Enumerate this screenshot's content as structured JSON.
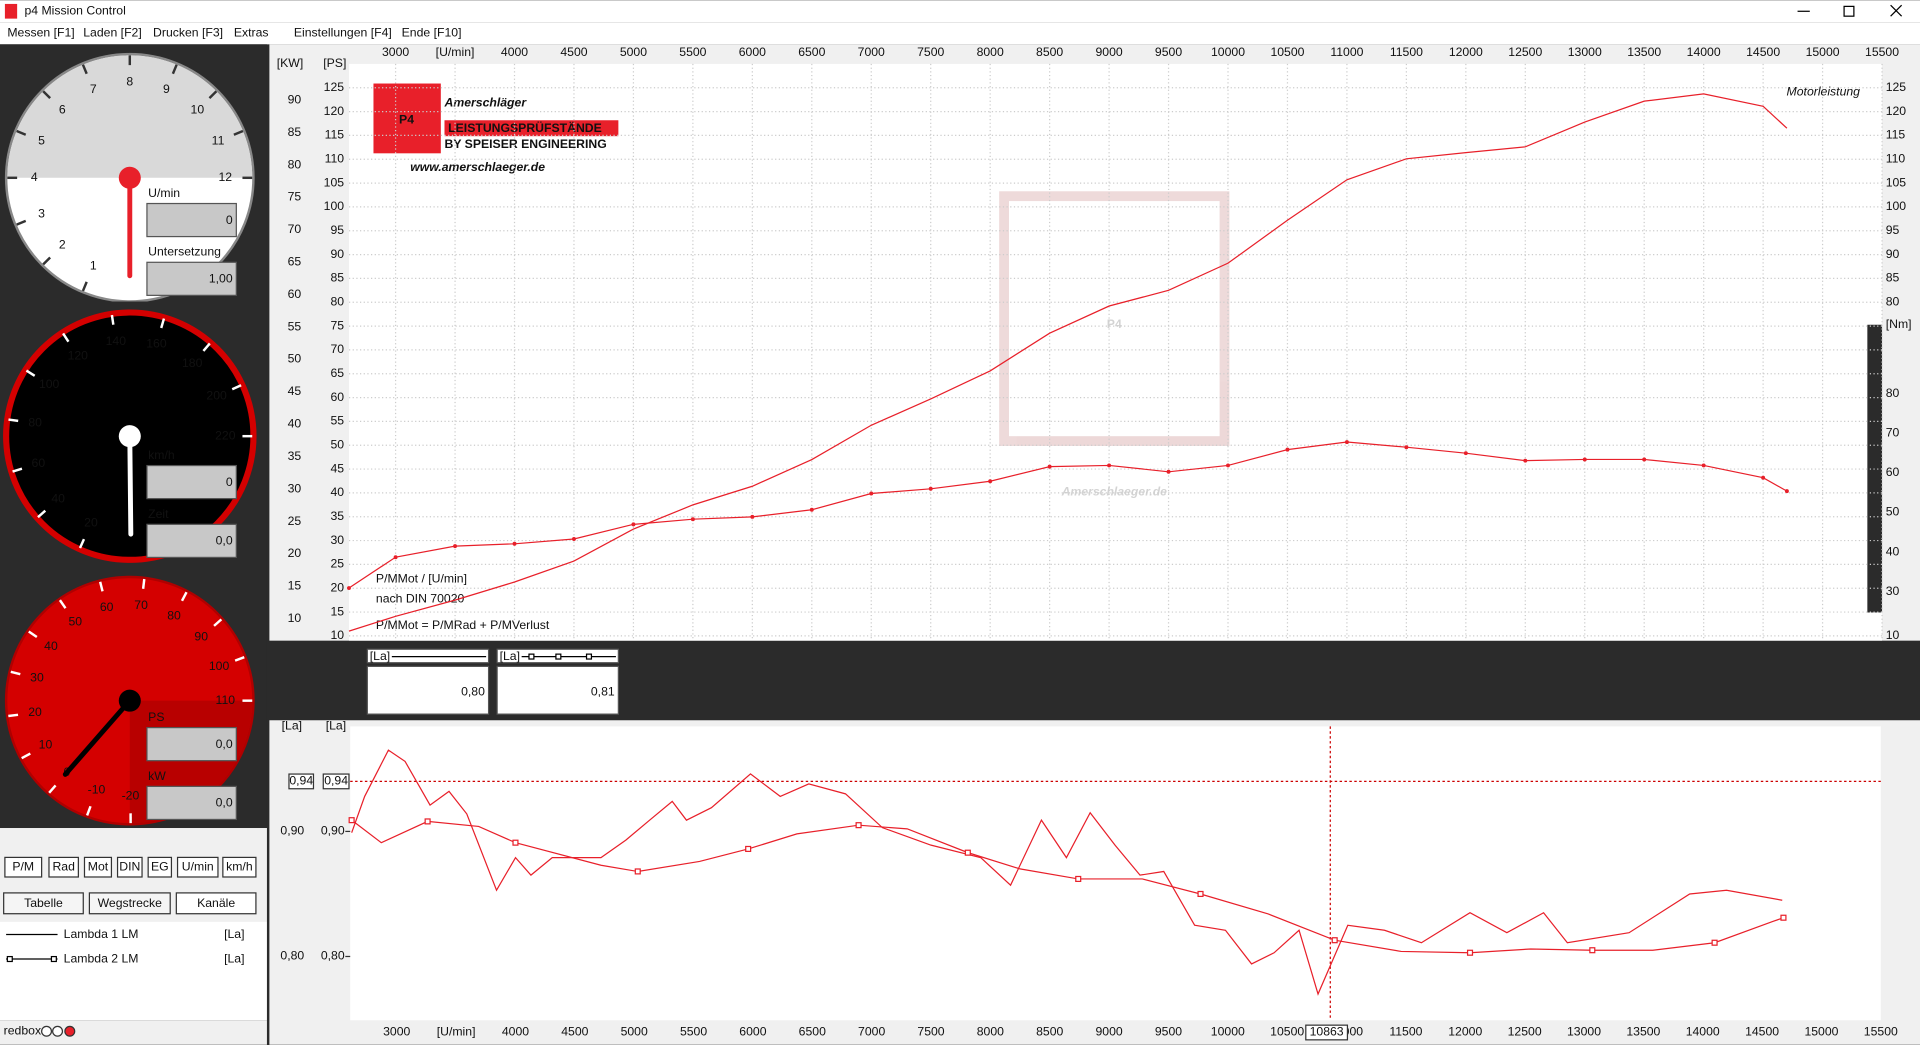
{
  "window": {
    "title": "p4 Mission Control"
  },
  "menu": [
    "Messen [F1]",
    "Laden [F2]",
    "Drucken [F3]",
    "Extras",
    "Einstellungen [F4]",
    "Ende [F10]"
  ],
  "gauges": [
    {
      "scale": [
        1,
        2,
        3,
        4,
        5,
        6,
        7,
        8,
        9,
        10,
        11,
        12
      ],
      "readouts": [
        {
          "label": "U/min",
          "value": "0"
        },
        {
          "label": "Untersetzung",
          "value": "1,00"
        }
      ]
    },
    {
      "scale": [
        20,
        40,
        60,
        80,
        100,
        120,
        140,
        160,
        180,
        200,
        220
      ],
      "readouts": [
        {
          "label": "km/h",
          "value": "0"
        },
        {
          "label": "Zeit",
          "value": "0,0"
        }
      ]
    },
    {
      "scale": [
        -20,
        -10,
        0,
        10,
        20,
        30,
        40,
        50,
        60,
        70,
        80,
        90,
        100,
        110
      ],
      "readouts": [
        {
          "label": "PS",
          "value": "0,0"
        },
        {
          "label": "kW",
          "value": "0,0"
        }
      ]
    }
  ],
  "buttons": [
    "P/M",
    "Rad",
    "Mot",
    "DIN",
    "EG",
    "U/min",
    "km/h"
  ],
  "tabs": [
    "Tabelle",
    "Wegstrecke",
    "Kanäle"
  ],
  "channels": [
    {
      "name": "Lambda 1 LM",
      "unit": "[La]"
    },
    {
      "name": "Lambda 2 LM",
      "unit": "[La]"
    }
  ],
  "status": "redbox",
  "logo": {
    "mark": "P4",
    "name": "Amerschläger",
    "subtitle": "LEISTUNGSPRÜFSTÄNDE",
    "by": "BY SPEISER ENGINEERING",
    "url": "www.amerschlaeger.de",
    "watermark": "Amerschlaeger.de"
  },
  "readouts": [
    {
      "unit": "[La]",
      "value": "0,80"
    },
    {
      "unit": "[La]",
      "value": "0,81"
    }
  ],
  "chart_data": [
    {
      "type": "line",
      "annotation": "Motorleistung",
      "notes": [
        "P/MMot / [U/min]",
        "nach DIN 70020",
        "P/MMot = P/MRad + P/MVerlust"
      ],
      "y_label": "[PS]",
      "kw_label": "[KW]",
      "y2_label": "[Nm]",
      "xlim": [
        2608,
        15500
      ],
      "xticks": [
        3000,
        {
          "value": 3500,
          "label": "[U/min]"
        },
        4000,
        4500,
        5000,
        5500,
        6000,
        6500,
        7000,
        7500,
        8000,
        8500,
        9000,
        9500,
        10000,
        10500,
        11000,
        11500,
        12000,
        12500,
        13000,
        13500,
        14000,
        14500,
        15000,
        15500
      ],
      "ylim": [
        9,
        130
      ],
      "yticks": [
        10,
        15,
        20,
        25,
        30,
        35,
        40,
        45,
        50,
        55,
        60,
        65,
        70,
        75,
        80,
        85,
        90,
        95,
        100,
        105,
        110,
        115,
        120,
        125
      ],
      "kwlim": [
        6.62,
        95.6
      ],
      "kwticks": [
        10,
        15,
        20,
        25,
        30,
        35,
        40,
        45,
        50,
        55,
        60,
        65,
        70,
        75,
        80,
        85,
        90
      ],
      "y2lim": [
        17.6,
        163.4
      ],
      "y2ticks": [
        30,
        40,
        50,
        60,
        70,
        80
      ],
      "grid": true,
      "x": [
        2608,
        3000,
        3500,
        4000,
        4500,
        5000,
        5500,
        6000,
        6500,
        7000,
        7500,
        8000,
        8500,
        9000,
        9500,
        10000,
        10500,
        11000,
        11500,
        12000,
        12500,
        13000,
        13500,
        14000,
        14500,
        14700
      ],
      "series": [
        {
          "color": "#e8202a",
          "values": [
            11.0,
            14.1,
            17.5,
            21.3,
            25.7,
            32.4,
            37.5,
            41.4,
            47.0,
            54.2,
            59.7,
            65.6,
            73.5,
            79.2,
            82.5,
            88.2,
            97.2,
            105.7,
            110.1,
            111.4,
            112.6,
            117.8,
            122.2,
            123.7,
            121.1,
            116.5
          ]
        },
        {
          "color": "#e8202a",
          "axis": "y2",
          "markers": true,
          "values": [
            30.9,
            38.7,
            41.5,
            42.1,
            43.3,
            47.0,
            48.3,
            48.9,
            50.7,
            54.8,
            56.0,
            57.9,
            61.6,
            61.9,
            60.3,
            61.9,
            65.9,
            67.8,
            66.5,
            65.0,
            63.1,
            63.4,
            63.4,
            61.9,
            58.8,
            55.4
          ]
        }
      ]
    },
    {
      "type": "line",
      "y_label": "[La]",
      "xlim": [
        2608,
        15500
      ],
      "xticks": [
        3000,
        {
          "value": 3500,
          "label": "[U/min]"
        },
        4000,
        4500,
        5000,
        5500,
        6000,
        6500,
        7000,
        7500,
        8000,
        8500,
        9000,
        9500,
        10000,
        10500,
        11000,
        11500,
        12000,
        12500,
        13000,
        13500,
        14000,
        14500,
        15000,
        15500
      ],
      "ylim": [
        0.749,
        0.984
      ],
      "yticks": [
        {
          "value": 0.8,
          "label": "0,80"
        },
        {
          "value": 0.9,
          "label": "0,90"
        }
      ],
      "grid": false,
      "cursor": {
        "x": 10863,
        "x_label": "10863",
        "y": 0.94,
        "y_label": "0,94"
      },
      "series": [
        {
          "color": "#e8202a",
          "x": [
            2620,
            2730,
            2930,
            3070,
            3280,
            3440,
            3590,
            3840,
            4000,
            4130,
            4310,
            4720,
            4930,
            5130,
            5320,
            5440,
            5650,
            5980,
            6230,
            6470,
            6780,
            7090,
            7500,
            7920,
            8170,
            8430,
            8640,
            8840,
            9050,
            9260,
            9460,
            9720,
            9980,
            10200,
            10390,
            10600,
            10760,
            11010,
            11320,
            11630,
            12040,
            12350,
            12660,
            12860,
            13380,
            13890,
            14200,
            14670
          ],
          "values": [
            0.899,
            0.928,
            0.965,
            0.956,
            0.921,
            0.932,
            0.914,
            0.853,
            0.879,
            0.865,
            0.879,
            0.879,
            0.893,
            0.909,
            0.924,
            0.909,
            0.919,
            0.946,
            0.928,
            0.938,
            0.93,
            0.903,
            0.889,
            0.879,
            0.857,
            0.909,
            0.879,
            0.915,
            0.889,
            0.865,
            0.868,
            0.825,
            0.821,
            0.794,
            0.803,
            0.821,
            0.77,
            0.825,
            0.821,
            0.811,
            0.835,
            0.819,
            0.835,
            0.811,
            0.819,
            0.85,
            0.853,
            0.845
          ]
        },
        {
          "color": "#e8202a",
          "markers": true,
          "x": [
            2620,
            2870,
            3260,
            3690,
            4000,
            4720,
            5030,
            5550,
            5960,
            6370,
            6890,
            7300,
            7810,
            8250,
            8740,
            9280,
            9770,
            10340,
            10900,
            11460,
            12040,
            12550,
            13070,
            13580,
            14100,
            14590,
            14680
          ],
          "values": [
            0.909,
            0.891,
            0.908,
            0.904,
            0.891,
            0.873,
            0.868,
            0.876,
            0.886,
            0.898,
            0.905,
            0.902,
            0.883,
            0.87,
            0.862,
            0.862,
            0.85,
            0.834,
            0.813,
            0.804,
            0.803,
            0.806,
            0.805,
            0.805,
            0.811,
            0.828,
            0.831
          ]
        }
      ]
    }
  ]
}
